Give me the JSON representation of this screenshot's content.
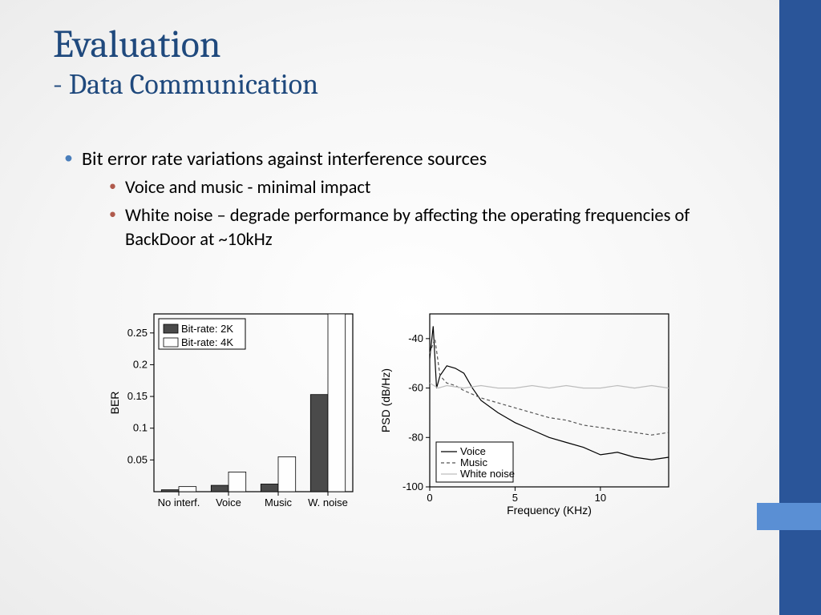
{
  "slide": {
    "title_main": "Evaluation",
    "title_sub": "- Data Communication",
    "title_color": "#1f497d",
    "title_main_fontsize": 48,
    "title_sub_fontsize": 36
  },
  "bullets": {
    "level1_bullet_color": "#4a7ebb",
    "level2_bullet_color": "#b05a4c",
    "main": "Bit error rate variations against interference sources",
    "sub": [
      "Voice and music - minimal impact",
      "White noise – degrade performance by affecting the operating frequencies of BackDoor at ~10kHz"
    ]
  },
  "sidebar": {
    "dark_color": "#2a5599",
    "light_color": "#5a8fd4"
  },
  "bar_chart": {
    "type": "bar",
    "ylabel": "BER",
    "ylim": [
      0,
      0.28
    ],
    "yticks": [
      0.05,
      0.1,
      0.15,
      0.2,
      0.25
    ],
    "categories": [
      "No interf.",
      "Voice",
      "Music",
      "W. noise"
    ],
    "series": [
      {
        "name": "Bit-rate: 2K",
        "fill": "#4a4a4a",
        "values": [
          0.003,
          0.01,
          0.012,
          0.153
        ]
      },
      {
        "name": "Bit-rate: 4K",
        "fill": "#ffffff",
        "values": [
          0.008,
          0.031,
          0.055,
          0.28
        ]
      }
    ],
    "bar_width": 0.35,
    "tick_fontsize": 13,
    "label_fontsize": 14
  },
  "line_chart": {
    "type": "line",
    "xlabel": "Frequency (KHz)",
    "ylabel": "PSD (dB/Hz)",
    "xlim": [
      0,
      14
    ],
    "ylim": [
      -100,
      -30
    ],
    "xticks": [
      0,
      5,
      10
    ],
    "yticks": [
      -100,
      -80,
      -60,
      -40
    ],
    "series": [
      {
        "name": "Voice",
        "style": "solid",
        "color": "#000000",
        "points": [
          [
            0,
            -48
          ],
          [
            0.2,
            -35
          ],
          [
            0.4,
            -60
          ],
          [
            0.6,
            -55
          ],
          [
            1.0,
            -51
          ],
          [
            1.5,
            -52
          ],
          [
            2.0,
            -54
          ],
          [
            2.5,
            -60
          ],
          [
            3.0,
            -65
          ],
          [
            4.0,
            -70
          ],
          [
            5.0,
            -74
          ],
          [
            6.0,
            -77
          ],
          [
            7.0,
            -80
          ],
          [
            8.0,
            -82
          ],
          [
            9.0,
            -84
          ],
          [
            10.0,
            -87
          ],
          [
            11.0,
            -86
          ],
          [
            12.0,
            -88
          ],
          [
            13.0,
            -89
          ],
          [
            14.0,
            -88
          ]
        ]
      },
      {
        "name": "Music",
        "style": "dash",
        "color": "#555555",
        "points": [
          [
            0,
            -46
          ],
          [
            0.3,
            -40
          ],
          [
            0.6,
            -55
          ],
          [
            1.0,
            -58
          ],
          [
            1.5,
            -59
          ],
          [
            2.0,
            -61
          ],
          [
            3.0,
            -64
          ],
          [
            4.0,
            -66
          ],
          [
            5.0,
            -68
          ],
          [
            6.0,
            -70
          ],
          [
            7.0,
            -72
          ],
          [
            8.0,
            -73
          ],
          [
            9.0,
            -75
          ],
          [
            10.0,
            -76
          ],
          [
            11.0,
            -77
          ],
          [
            12.0,
            -78
          ],
          [
            13.0,
            -79
          ],
          [
            14.0,
            -78
          ]
        ]
      },
      {
        "name": "White noise",
        "style": "solid",
        "color": "#bdbdbd",
        "points": [
          [
            0,
            -58
          ],
          [
            0.5,
            -60
          ],
          [
            1.0,
            -59
          ],
          [
            2.0,
            -60
          ],
          [
            3.0,
            -59
          ],
          [
            4.0,
            -60
          ],
          [
            5.0,
            -60
          ],
          [
            6.0,
            -59
          ],
          [
            7.0,
            -60
          ],
          [
            8.0,
            -59
          ],
          [
            9.0,
            -60
          ],
          [
            10.0,
            -60
          ],
          [
            11.0,
            -59
          ],
          [
            12.0,
            -60
          ],
          [
            13.0,
            -59
          ],
          [
            14.0,
            -60
          ]
        ]
      }
    ],
    "tick_fontsize": 13,
    "label_fontsize": 14
  }
}
